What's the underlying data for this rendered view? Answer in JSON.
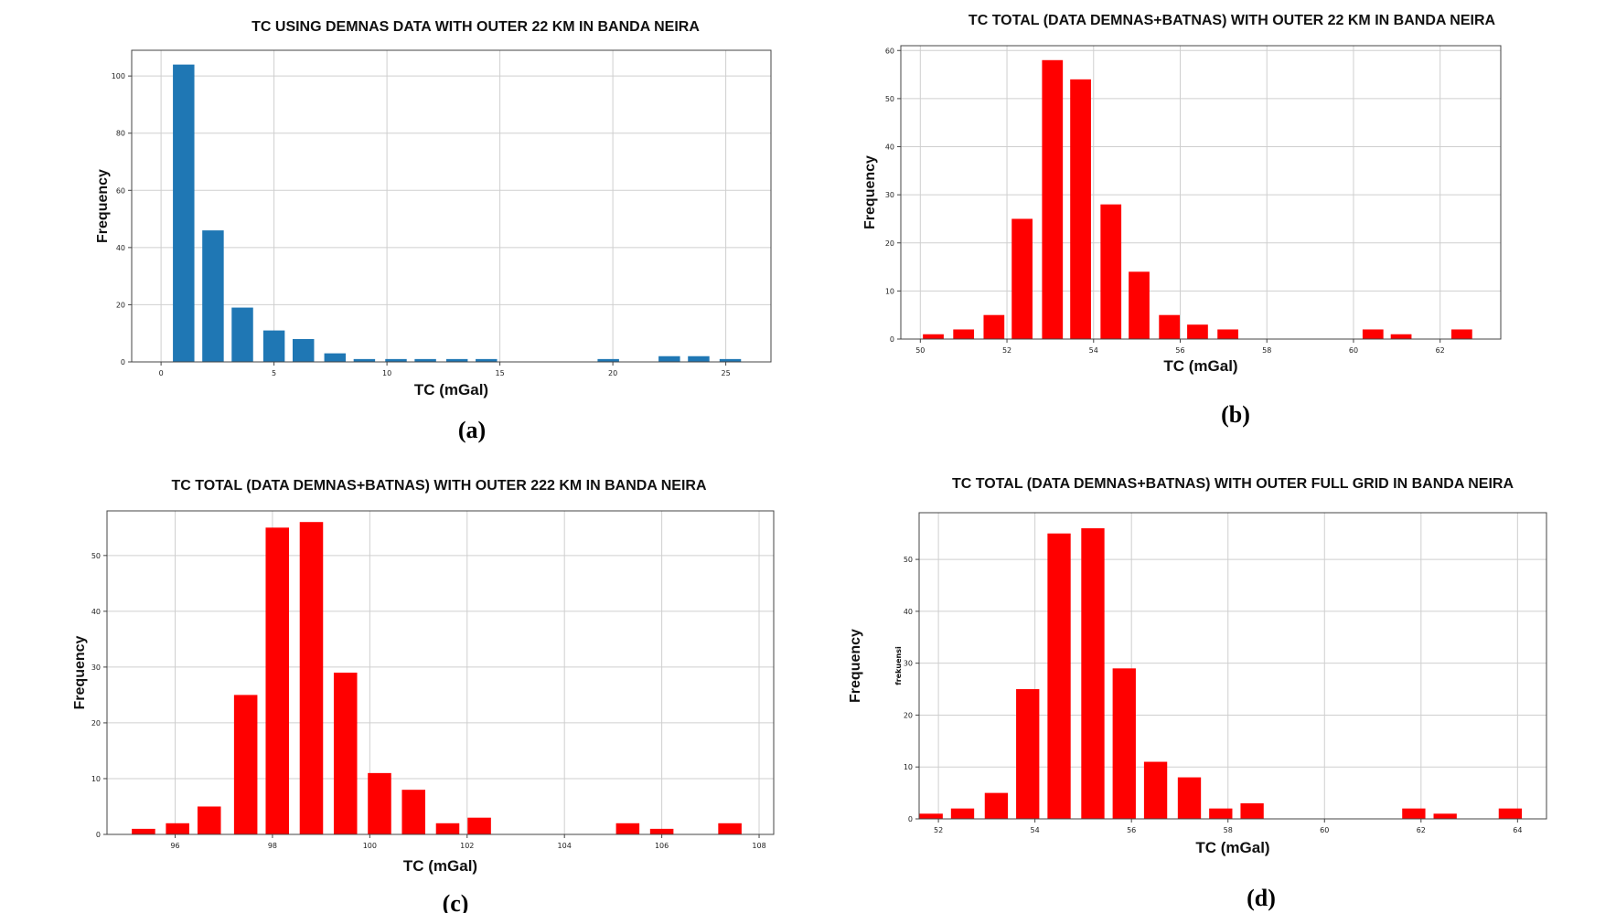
{
  "chart_data": [
    {
      "type": "bar",
      "panel": "(a)",
      "title": "TC USING DEMNAS DATA WITH OUTER 22 KM IN BANDA NEIRA",
      "xlabel": "TC (mGal)",
      "ylabel": "Frequency",
      "extra_ylabel": "",
      "color": "#1f77b4",
      "xlim": [
        -1.3,
        27
      ],
      "ylim": [
        0,
        109
      ],
      "xticks": [
        0,
        5,
        10,
        15,
        20,
        25
      ],
      "yticks": [
        0,
        20,
        40,
        60,
        80,
        100
      ],
      "grid": true,
      "bar_width": 0.95,
      "x": [
        1.0,
        2.3,
        3.6,
        5.0,
        6.3,
        7.7,
        9.0,
        10.4,
        11.7,
        13.1,
        14.4,
        19.8,
        21.1,
        22.5,
        23.8,
        25.2
      ],
      "values": [
        104,
        46,
        19,
        11,
        8,
        3,
        1,
        1,
        1,
        1,
        1,
        1,
        0,
        2,
        2,
        1
      ]
    },
    {
      "type": "bar",
      "panel": "(b)",
      "title": "TC TOTAL (DATA DEMNAS+BATNAS) WITH OUTER 22 KM IN BANDA NEIRA",
      "xlabel": "TC (mGal)",
      "ylabel": "Frequency",
      "extra_ylabel": "",
      "color": "#ff0000",
      "xlim": [
        49.55,
        63.4
      ],
      "ylim": [
        0,
        61
      ],
      "xticks": [
        50,
        52,
        54,
        56,
        58,
        60,
        62
      ],
      "yticks": [
        0,
        10,
        20,
        30,
        40,
        50,
        60
      ],
      "grid": true,
      "bar_width": 0.48,
      "x": [
        50.3,
        51.0,
        51.7,
        52.35,
        53.05,
        53.7,
        54.4,
        55.05,
        55.75,
        56.4,
        57.1,
        60.45,
        61.1,
        62.5
      ],
      "values": [
        1,
        2,
        5,
        25,
        58,
        54,
        28,
        14,
        5,
        3,
        2,
        2,
        1,
        2
      ]
    },
    {
      "type": "bar",
      "panel": "(c)",
      "title": "TC TOTAL (DATA DEMNAS+BATNAS) WITH OUTER 222 KM IN BANDA NEIRA",
      "xlabel": "TC (mGal)",
      "ylabel": "Frequency",
      "extra_ylabel": "",
      "color": "#ff0000",
      "xlim": [
        94.6,
        108.3
      ],
      "ylim": [
        0,
        58
      ],
      "xticks": [
        96,
        98,
        100,
        102,
        104,
        106,
        108
      ],
      "yticks": [
        0,
        10,
        20,
        30,
        40,
        50
      ],
      "grid": true,
      "bar_width": 0.48,
      "x": [
        95.35,
        96.05,
        96.7,
        97.45,
        98.1,
        98.8,
        99.5,
        100.2,
        100.9,
        101.6,
        102.25,
        105.3,
        106.0,
        107.4
      ],
      "values": [
        1,
        2,
        5,
        25,
        55,
        56,
        29,
        11,
        8,
        2,
        3,
        2,
        1,
        2
      ]
    },
    {
      "type": "bar",
      "panel": "(d)",
      "title": "TC TOTAL (DATA DEMNAS+BATNAS) WITH OUTER FULL GRID IN BANDA NEIRA",
      "xlabel": "TC (mGal)",
      "ylabel": "Frequency",
      "extra_ylabel": "frekuensi",
      "color": "#ff0000",
      "xlim": [
        51.6,
        64.6
      ],
      "ylim": [
        0,
        59
      ],
      "xticks": [
        52,
        54,
        56,
        58,
        60,
        62,
        64
      ],
      "yticks": [
        0,
        10,
        20,
        30,
        40,
        50
      ],
      "grid": true,
      "bar_width": 0.48,
      "x": [
        51.85,
        52.5,
        53.2,
        53.85,
        54.5,
        55.2,
        55.85,
        56.5,
        57.2,
        57.85,
        58.5,
        61.85,
        62.5,
        63.85
      ],
      "values": [
        1,
        2,
        5,
        25,
        55,
        56,
        29,
        11,
        8,
        2,
        3,
        2,
        1,
        2
      ]
    }
  ],
  "captions": [
    "(a)",
    "(b)",
    "(c)",
    "(d)"
  ]
}
